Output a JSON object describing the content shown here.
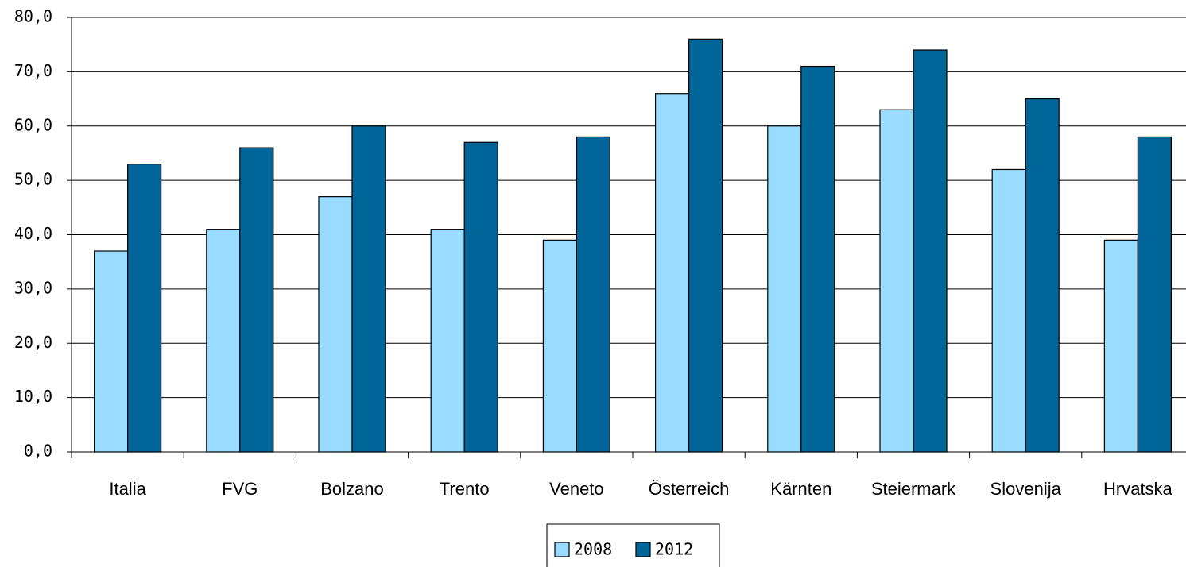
{
  "chart_data": {
    "type": "bar",
    "categories": [
      "Italia",
      "FVG",
      "Bolzano",
      "Trento",
      "Veneto",
      "Österreich",
      "Kärnten",
      "Steiermark",
      "Slovenija",
      "Hrvatska"
    ],
    "series": [
      {
        "name": "2008",
        "color": "#99dcff",
        "values": [
          37,
          41,
          47,
          41,
          39,
          66,
          60,
          63,
          52,
          39
        ]
      },
      {
        "name": "2012",
        "color": "#006699",
        "values": [
          53,
          56,
          60,
          57,
          58,
          76,
          71,
          74,
          65,
          58
        ]
      }
    ],
    "ylim": [
      0,
      80
    ],
    "yticks": [
      {
        "value": 0,
        "label": "0,0"
      },
      {
        "value": 10,
        "label": "10,0"
      },
      {
        "value": 20,
        "label": "20,0"
      },
      {
        "value": 30,
        "label": "30,0"
      },
      {
        "value": 40,
        "label": "40,0"
      },
      {
        "value": 50,
        "label": "50,0"
      },
      {
        "value": 60,
        "label": "60,0"
      },
      {
        "value": 70,
        "label": "70,0"
      },
      {
        "value": 80,
        "label": "80,0"
      }
    ],
    "grid": true,
    "legend": "bottom"
  }
}
